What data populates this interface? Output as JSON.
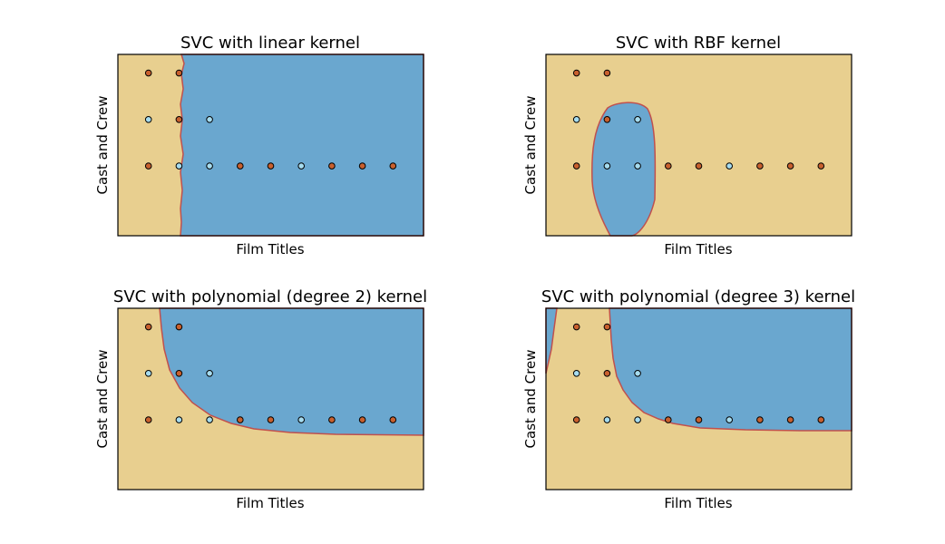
{
  "colors": {
    "neg_region": "#e8cf8f",
    "pos_region": "#6aa7cf",
    "boundary": "#c0504d",
    "neg_point": "#c8602e",
    "pos_point": "#a6dcef",
    "edge": "#000000"
  },
  "chart_data": [
    {
      "type": "scatter",
      "title": "SVC with linear kernel",
      "xlabel": "Film Titles",
      "ylabel": "Cast and Crew",
      "xlim": [
        -1,
        9
      ],
      "ylim": [
        -1.5,
        2.4
      ],
      "ticks": "none",
      "boundary": {
        "kind": "linear",
        "x_at": 1.1
      },
      "points": [
        {
          "x": 0,
          "y": 2,
          "class": 0
        },
        {
          "x": 1,
          "y": 2,
          "class": 0
        },
        {
          "x": 0,
          "y": 1,
          "class": 1
        },
        {
          "x": 1,
          "y": 1,
          "class": 0
        },
        {
          "x": 2,
          "y": 1,
          "class": 1
        },
        {
          "x": 0,
          "y": 0,
          "class": 0
        },
        {
          "x": 1,
          "y": 0,
          "class": 1
        },
        {
          "x": 2,
          "y": 0,
          "class": 1
        },
        {
          "x": 3,
          "y": 0,
          "class": 0
        },
        {
          "x": 4,
          "y": 0,
          "class": 0
        },
        {
          "x": 5,
          "y": 0,
          "class": 1
        },
        {
          "x": 6,
          "y": 0,
          "class": 0
        },
        {
          "x": 7,
          "y": 0,
          "class": 0
        },
        {
          "x": 8,
          "y": 0,
          "class": 0
        }
      ]
    },
    {
      "type": "scatter",
      "title": "SVC with RBF kernel",
      "xlabel": "Film Titles",
      "ylabel": "Cast and Crew",
      "xlim": [
        -1,
        9
      ],
      "ylim": [
        -1.5,
        2.4
      ],
      "ticks": "none",
      "boundary": {
        "kind": "rbf"
      },
      "points": [
        {
          "x": 0,
          "y": 2,
          "class": 0
        },
        {
          "x": 1,
          "y": 2,
          "class": 0
        },
        {
          "x": 0,
          "y": 1,
          "class": 1
        },
        {
          "x": 1,
          "y": 1,
          "class": 0
        },
        {
          "x": 2,
          "y": 1,
          "class": 1
        },
        {
          "x": 0,
          "y": 0,
          "class": 0
        },
        {
          "x": 1,
          "y": 0,
          "class": 1
        },
        {
          "x": 2,
          "y": 0,
          "class": 1
        },
        {
          "x": 3,
          "y": 0,
          "class": 0
        },
        {
          "x": 4,
          "y": 0,
          "class": 0
        },
        {
          "x": 5,
          "y": 0,
          "class": 1
        },
        {
          "x": 6,
          "y": 0,
          "class": 0
        },
        {
          "x": 7,
          "y": 0,
          "class": 0
        },
        {
          "x": 8,
          "y": 0,
          "class": 0
        }
      ]
    },
    {
      "type": "scatter",
      "title": "SVC with polynomial (degree 2) kernel",
      "xlabel": "Film Titles",
      "ylabel": "Cast and Crew",
      "xlim": [
        -1,
        9
      ],
      "ylim": [
        -1.5,
        2.4
      ],
      "ticks": "none",
      "boundary": {
        "kind": "poly2"
      },
      "points": [
        {
          "x": 0,
          "y": 2,
          "class": 0
        },
        {
          "x": 1,
          "y": 2,
          "class": 0
        },
        {
          "x": 0,
          "y": 1,
          "class": 1
        },
        {
          "x": 1,
          "y": 1,
          "class": 0
        },
        {
          "x": 2,
          "y": 1,
          "class": 1
        },
        {
          "x": 0,
          "y": 0,
          "class": 0
        },
        {
          "x": 1,
          "y": 0,
          "class": 1
        },
        {
          "x": 2,
          "y": 0,
          "class": 1
        },
        {
          "x": 3,
          "y": 0,
          "class": 0
        },
        {
          "x": 4,
          "y": 0,
          "class": 0
        },
        {
          "x": 5,
          "y": 0,
          "class": 1
        },
        {
          "x": 6,
          "y": 0,
          "class": 0
        },
        {
          "x": 7,
          "y": 0,
          "class": 0
        },
        {
          "x": 8,
          "y": 0,
          "class": 0
        }
      ]
    },
    {
      "type": "scatter",
      "title": "SVC with polynomial (degree 3) kernel",
      "xlabel": "Film Titles",
      "ylabel": "Cast and Crew",
      "xlim": [
        -1,
        9
      ],
      "ylim": [
        -1.5,
        2.4
      ],
      "ticks": "none",
      "boundary": {
        "kind": "poly3"
      },
      "points": [
        {
          "x": 0,
          "y": 2,
          "class": 0
        },
        {
          "x": 1,
          "y": 2,
          "class": 0
        },
        {
          "x": 0,
          "y": 1,
          "class": 1
        },
        {
          "x": 1,
          "y": 1,
          "class": 0
        },
        {
          "x": 2,
          "y": 1,
          "class": 1
        },
        {
          "x": 0,
          "y": 0,
          "class": 0
        },
        {
          "x": 1,
          "y": 0,
          "class": 1
        },
        {
          "x": 2,
          "y": 0,
          "class": 1
        },
        {
          "x": 3,
          "y": 0,
          "class": 0
        },
        {
          "x": 4,
          "y": 0,
          "class": 0
        },
        {
          "x": 5,
          "y": 0,
          "class": 1
        },
        {
          "x": 6,
          "y": 0,
          "class": 0
        },
        {
          "x": 7,
          "y": 0,
          "class": 0
        },
        {
          "x": 8,
          "y": 0,
          "class": 0
        }
      ]
    }
  ]
}
